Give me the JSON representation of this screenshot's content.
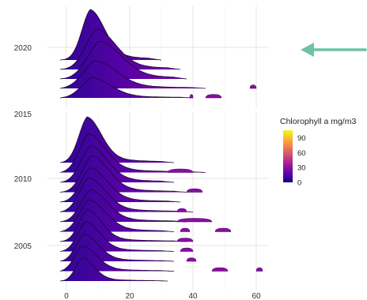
{
  "chart_data": [
    {
      "type": "ridgeline",
      "panel": "top",
      "x_ticks": [
        0,
        20,
        40,
        60
      ],
      "xlim": [
        -6,
        64
      ],
      "y_tick_labels": [
        "2020",
        "2015"
      ],
      "color_scale": "plasma",
      "grid": true,
      "ridges": [
        {
          "peak": 7.5,
          "spread": 6,
          "tail": 26,
          "height": 1.0
        },
        {
          "peak": 9.5,
          "spread": 8,
          "tail": 32,
          "height": 0.8
        },
        {
          "peak": 10.5,
          "spread": 9,
          "tail": 34,
          "height": 0.75
        },
        {
          "peak": 9,
          "spread": 9,
          "tail": 40,
          "height": 0.55
        },
        {
          "peak": 8,
          "spread": 8,
          "tail": 36,
          "height": 0.4
        }
      ],
      "outlier_blobs": [
        {
          "ridge": 3,
          "x_from": 58,
          "x_to": 60
        },
        {
          "ridge": 4,
          "x_from": 39,
          "x_to": 40
        },
        {
          "ridge": 4,
          "x_from": 44,
          "x_to": 49
        }
      ]
    },
    {
      "type": "ridgeline",
      "panel": "bottom",
      "x_ticks": [
        0,
        20,
        40,
        60
      ],
      "xlim": [
        -6,
        64
      ],
      "x_tick_labels": [
        "0",
        "20",
        "40",
        "60"
      ],
      "y_tick_labels": [
        "2010",
        "2005"
      ],
      "color_scale": "plasma",
      "grid": true,
      "ridges": [
        {
          "peak": 6.5,
          "spread": 6,
          "tail": 30,
          "height": 1.0
        },
        {
          "peak": 7,
          "spread": 7,
          "tail": 40,
          "height": 0.85
        },
        {
          "peak": 7.5,
          "spread": 7,
          "tail": 30,
          "height": 0.8
        },
        {
          "peak": 8,
          "spread": 7,
          "tail": 34,
          "height": 0.8
        },
        {
          "peak": 7.5,
          "spread": 7,
          "tail": 32,
          "height": 0.75
        },
        {
          "peak": 7,
          "spread": 7,
          "tail": 36,
          "height": 0.75
        },
        {
          "peak": 7.5,
          "spread": 7,
          "tail": 34,
          "height": 0.7
        },
        {
          "peak": 7,
          "spread": 7,
          "tail": 30,
          "height": 0.7
        },
        {
          "peak": 6.5,
          "spread": 6,
          "tail": 34,
          "height": 0.7
        },
        {
          "peak": 6,
          "spread": 6,
          "tail": 30,
          "height": 0.65
        },
        {
          "peak": 5.5,
          "spread": 6,
          "tail": 30,
          "height": 0.6
        },
        {
          "peak": 5,
          "spread": 6,
          "tail": 30,
          "height": 0.55
        },
        {
          "peak": 5,
          "spread": 5,
          "tail": 28,
          "height": 0.5
        }
      ],
      "outlier_blobs": [
        {
          "ridge": 1,
          "x_from": 32,
          "x_to": 40
        },
        {
          "ridge": 3,
          "x_from": 38,
          "x_to": 43
        },
        {
          "ridge": 5,
          "x_from": 35,
          "x_to": 38
        },
        {
          "ridge": 6,
          "x_from": 35,
          "x_to": 46
        },
        {
          "ridge": 7,
          "x_from": 47,
          "x_to": 52
        },
        {
          "ridge": 7,
          "x_from": 36,
          "x_to": 39
        },
        {
          "ridge": 8,
          "x_from": 35,
          "x_to": 40
        },
        {
          "ridge": 9,
          "x_from": 36,
          "x_to": 40
        },
        {
          "ridge": 10,
          "x_from": 38,
          "x_to": 41
        },
        {
          "ridge": 11,
          "x_from": 46,
          "x_to": 51
        },
        {
          "ridge": 11,
          "x_from": 60,
          "x_to": 62
        }
      ]
    }
  ],
  "legend": {
    "title": "Chlorophyll a mg/m3",
    "ticks": [
      {
        "value": 90,
        "label": "90"
      },
      {
        "value": 60,
        "label": "60"
      },
      {
        "value": 30,
        "label": "30"
      },
      {
        "value": 0,
        "label": "0"
      }
    ],
    "range": [
      0,
      105
    ],
    "colors": [
      "#0d0887",
      "#5c01a6",
      "#9c179e",
      "#cc4778",
      "#ed7953",
      "#fdb42f",
      "#f0f921"
    ]
  },
  "annotation_arrow": {
    "color": "#6cc3a4",
    "direction": "left"
  }
}
